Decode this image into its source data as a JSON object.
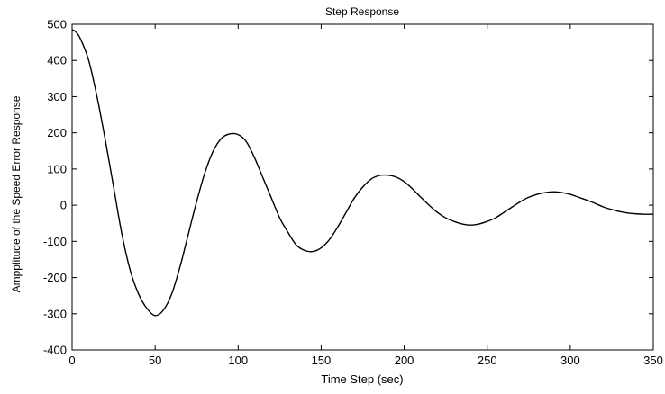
{
  "chart_data": {
    "type": "line",
    "title": "Step Response",
    "xlabel": "Time Step (sec)",
    "ylabel": "Ampplitude of the Speed Error Response",
    "xlim": [
      0,
      350
    ],
    "ylim": [
      -400,
      500
    ],
    "xticks": [
      0,
      50,
      100,
      150,
      200,
      250,
      300,
      350
    ],
    "yticks": [
      -400,
      -300,
      -200,
      -100,
      0,
      100,
      200,
      300,
      400,
      500
    ],
    "grid": false,
    "series": [
      {
        "color": "#000000",
        "x": [
          0,
          2,
          5,
          10,
          15,
          20,
          25,
          30,
          35,
          40,
          45,
          50,
          55,
          60,
          65,
          70,
          75,
          80,
          85,
          90,
          95,
          100,
          105,
          110,
          115,
          120,
          125,
          130,
          135,
          140,
          145,
          150,
          155,
          160,
          165,
          170,
          175,
          180,
          185,
          190,
          195,
          200,
          205,
          210,
          215,
          220,
          225,
          230,
          235,
          240,
          245,
          250,
          255,
          260,
          265,
          270,
          275,
          280,
          285,
          290,
          295,
          300,
          305,
          310,
          315,
          320,
          325,
          330,
          335,
          340,
          345,
          350
        ],
        "y": [
          485,
          480,
          460,
          400,
          300,
          180,
          50,
          -80,
          -180,
          -245,
          -285,
          -305,
          -290,
          -245,
          -170,
          -80,
          10,
          90,
          150,
          185,
          197,
          195,
          175,
          130,
          75,
          20,
          -35,
          -75,
          -110,
          -125,
          -128,
          -118,
          -95,
          -60,
          -20,
          20,
          50,
          72,
          82,
          83,
          78,
          65,
          45,
          22,
          0,
          -20,
          -35,
          -45,
          -52,
          -55,
          -52,
          -45,
          -35,
          -20,
          -5,
          10,
          22,
          30,
          35,
          37,
          35,
          30,
          22,
          14,
          5,
          -5,
          -12,
          -18,
          -22,
          -24,
          -25,
          -25
        ]
      }
    ]
  }
}
